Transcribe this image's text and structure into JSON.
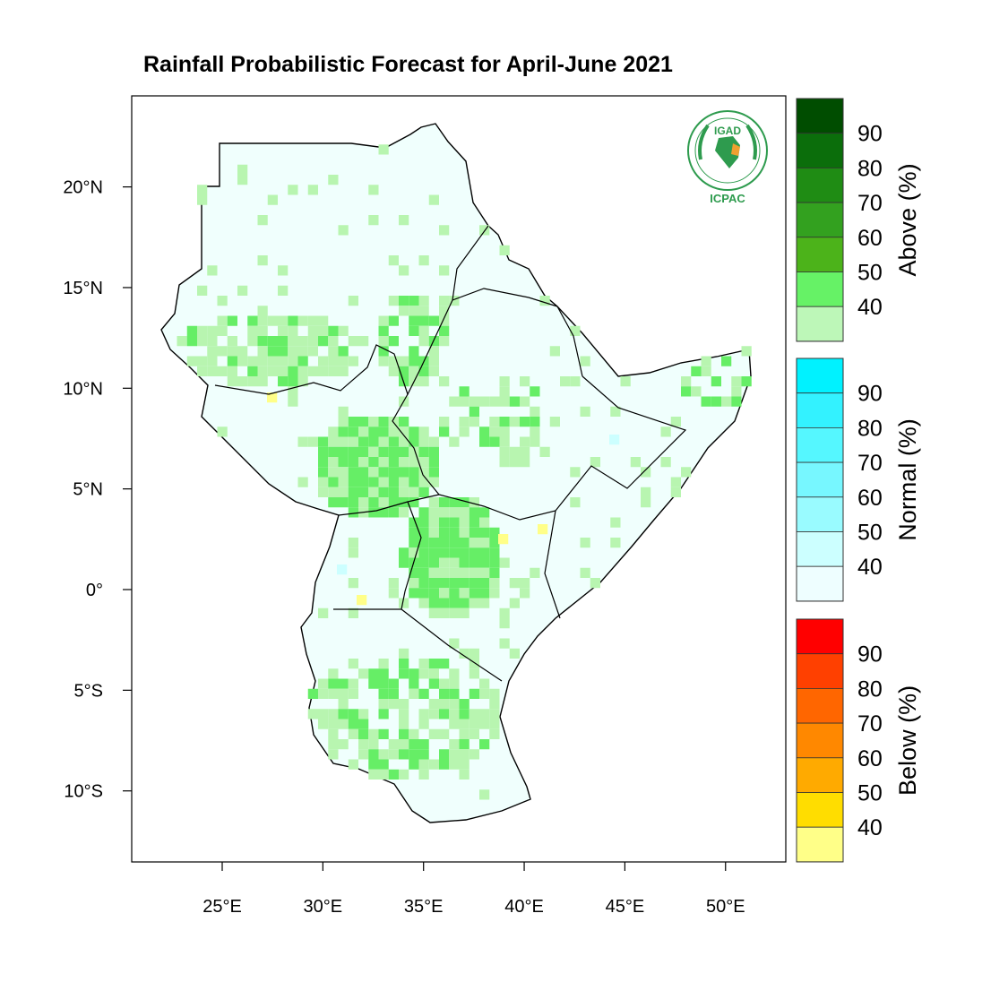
{
  "title": "Rainfall Probabilistic Forecast for April-June 2021",
  "logo": {
    "org_top": "IGAD",
    "org_bottom": "ICPAC",
    "icon": "igad-icpac-logo"
  },
  "map": {
    "x_ticks": [
      {
        "lon": 25,
        "label": "25°E"
      },
      {
        "lon": 30,
        "label": "30°E"
      },
      {
        "lon": 35,
        "label": "35°E"
      },
      {
        "lon": 40,
        "label": "40°E"
      },
      {
        "lon": 45,
        "label": "45°E"
      },
      {
        "lon": 50,
        "label": "50°E"
      }
    ],
    "y_ticks": [
      {
        "lat": 20,
        "label": "20°N"
      },
      {
        "lat": 15,
        "label": "15°N"
      },
      {
        "lat": 10,
        "label": "10°N"
      },
      {
        "lat": 5,
        "label": "5°N"
      },
      {
        "lat": 0,
        "label": "0°"
      },
      {
        "lat": -5,
        "label": "5°S"
      },
      {
        "lat": -10,
        "label": "10°S"
      }
    ],
    "colors": {
      "land_default": "#f0fffd",
      "above_40": "#b8f5b0",
      "above_50": "#66ee66",
      "normal_40": "#ccffff",
      "below_40": "#ffff88",
      "border": "#000000"
    }
  },
  "legends": [
    {
      "title": "Above (%)",
      "labels": [
        "90",
        "80",
        "70",
        "60",
        "50",
        "40"
      ],
      "colors": [
        "#004d00",
        "#0b6e0b",
        "#1f8c14",
        "#33a11f",
        "#4cb31a",
        "#66f266",
        "#bdf7b8"
      ]
    },
    {
      "title": "Normal (%)",
      "labels": [
        "90",
        "80",
        "70",
        "60",
        "50",
        "40"
      ],
      "colors": [
        "#00f2ff",
        "#33f2ff",
        "#55f7ff",
        "#77f7ff",
        "#99fbff",
        "#ccffff",
        "#eefeff"
      ]
    },
    {
      "title": "Below (%)",
      "labels": [
        "90",
        "80",
        "70",
        "60",
        "50",
        "40"
      ],
      "colors": [
        "#ff0000",
        "#ff4000",
        "#ff6600",
        "#ff8800",
        "#ffaa00",
        "#ffdd00",
        "#ffff88"
      ]
    }
  ]
}
